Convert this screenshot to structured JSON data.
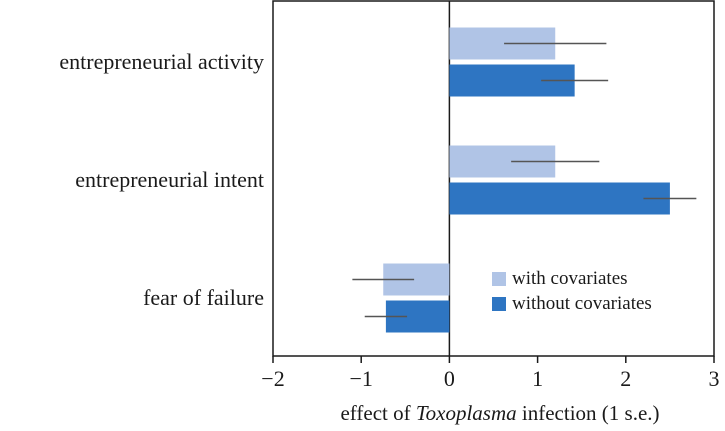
{
  "chart_data": {
    "type": "bar",
    "orientation": "horizontal",
    "categories": [
      "entrepreneurial activity",
      "entrepreneurial intent",
      "fear of failure"
    ],
    "series": [
      {
        "name": "with covariates",
        "color": "#b0c4e6",
        "values": [
          1.2,
          1.2,
          -0.75
        ],
        "errors": [
          0.58,
          0.5,
          0.35
        ]
      },
      {
        "name": "without covariates",
        "color": "#2e75c2",
        "values": [
          1.42,
          2.5,
          -0.72
        ],
        "errors": [
          0.38,
          0.3,
          0.24
        ]
      }
    ],
    "xlim": [
      -2,
      3
    ],
    "xticks": [
      -2,
      -1,
      0,
      1,
      2,
      3
    ],
    "xtick_labels": [
      "−2",
      "−1",
      "0",
      "1",
      "2",
      "3"
    ],
    "xlabel": {
      "prefix": "effect of ",
      "italic": "Toxoplasma",
      "suffix": " infection (1 s.e.)"
    },
    "title": "",
    "legend_position": "lower-right",
    "grid": false
  }
}
